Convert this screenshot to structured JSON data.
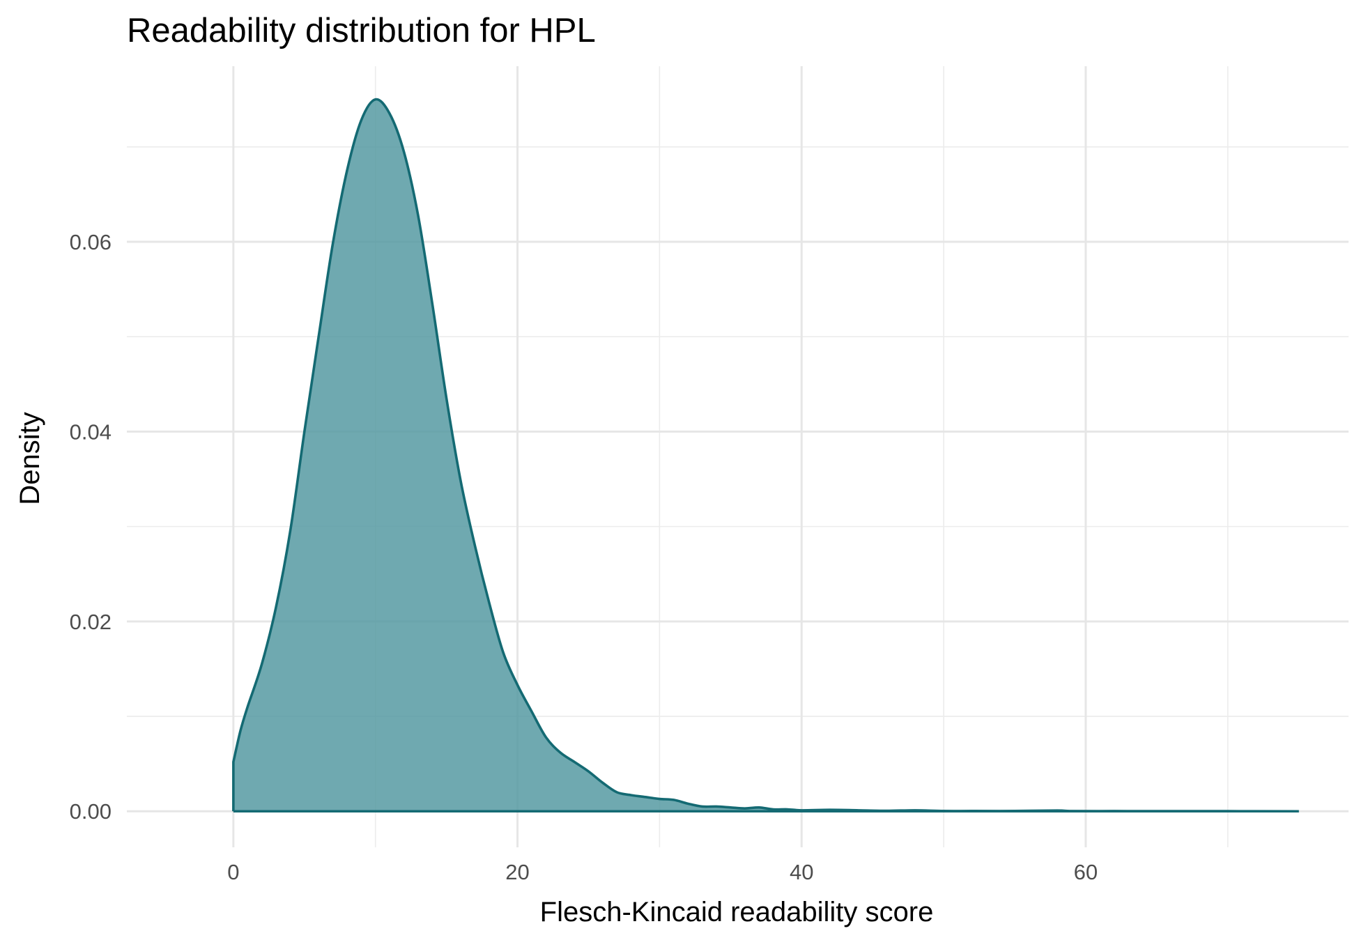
{
  "chart_data": {
    "type": "area",
    "title": "Readability distribution for HPL",
    "xlabel": "Flesch-Kincaid readability score",
    "ylabel": "Density",
    "xlim": [
      -7.5,
      78.5
    ],
    "ylim": [
      -0.0038,
      0.0785
    ],
    "x_ticks": [
      0,
      20,
      40,
      60
    ],
    "x_tick_labels": [
      "0",
      "20",
      "40",
      "60"
    ],
    "y_ticks": [
      0,
      0.02,
      0.04,
      0.06
    ],
    "y_tick_labels": [
      "0.00",
      "0.02",
      "0.04",
      "0.06"
    ],
    "grid": true,
    "legend": "none",
    "colors": {
      "fill": "#4f969f",
      "fill_opacity": 0.82,
      "line": "#146a73",
      "grid_major": "#e6e6e6",
      "grid_minor": "#ececec"
    },
    "series": [
      {
        "x": [
          0,
          0.5,
          1,
          2,
          3,
          4,
          5,
          6,
          7,
          8,
          9,
          10,
          11,
          12,
          13,
          14,
          15,
          16,
          17,
          18,
          19,
          20,
          21,
          22,
          23,
          24,
          25,
          26,
          27,
          28,
          29,
          30,
          31,
          32,
          33,
          34,
          35,
          36,
          37,
          38,
          39,
          40,
          42,
          44,
          46,
          48,
          50,
          52,
          55,
          58,
          59,
          62,
          65,
          70,
          75
        ],
        "y": [
          0.0052,
          0.0085,
          0.011,
          0.0155,
          0.0215,
          0.0295,
          0.04,
          0.05,
          0.0598,
          0.0675,
          0.0728,
          0.075,
          0.0735,
          0.0695,
          0.0628,
          0.0535,
          0.0435,
          0.0348,
          0.028,
          0.022,
          0.0167,
          0.0133,
          0.0105,
          0.0078,
          0.0062,
          0.0052,
          0.0042,
          0.003,
          0.002,
          0.0017,
          0.0015,
          0.0013,
          0.0012,
          0.0008,
          0.0005,
          0.0005,
          0.0004,
          0.0003,
          0.0004,
          0.0002,
          0.0002,
          0.0001,
          0.00015,
          0.0001,
          5e-05,
          0.0001,
          3e-05,
          3e-05,
          3e-05,
          8e-05,
          2e-05,
          2e-05,
          1e-05,
          1e-05,
          0.0
        ]
      }
    ]
  }
}
